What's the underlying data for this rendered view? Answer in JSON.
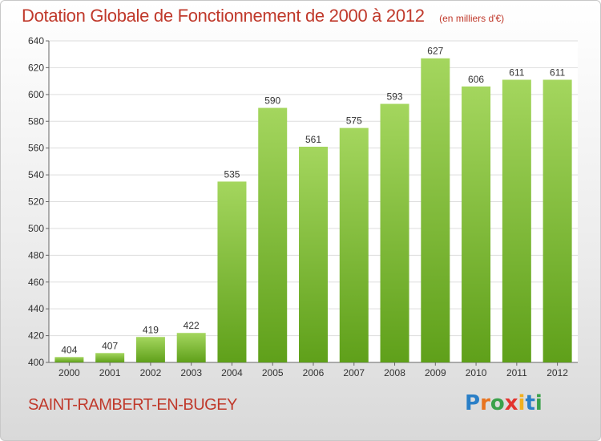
{
  "title": "Dotation Globale de Fonctionnement de 2000 à 2012",
  "subtitle": "(en milliers d'€)",
  "commune": "SAINT-RAMBERT-EN-BUGEY",
  "logo": {
    "text": "Proxiti",
    "letters": [
      {
        "char": "P",
        "color": "#2a7fc7"
      },
      {
        "char": "r",
        "color": "#e8731e"
      },
      {
        "char": "o",
        "color": "#3aa14b"
      },
      {
        "char": "x",
        "color": "#e3342f"
      },
      {
        "char": "i",
        "color": "#f2b01e"
      },
      {
        "char": "t",
        "color": "#2a7fc7"
      },
      {
        "char": "i",
        "color": "#3aa14b"
      }
    ]
  },
  "colors": {
    "title": "#c0392b",
    "bar_light": "#a4d65e",
    "bar_dark": "#5fa01a",
    "grid": "#dddddd"
  },
  "chart_data": {
    "type": "bar",
    "categories": [
      "2000",
      "2001",
      "2002",
      "2003",
      "2004",
      "2005",
      "2006",
      "2007",
      "2008",
      "2009",
      "2010",
      "2011",
      "2012"
    ],
    "values": [
      404,
      407,
      419,
      422,
      535,
      590,
      561,
      575,
      593,
      627,
      606,
      611,
      611
    ],
    "ylim": [
      400,
      640
    ],
    "yticks": [
      400,
      420,
      440,
      460,
      480,
      500,
      520,
      540,
      560,
      580,
      600,
      620,
      640
    ],
    "grid": true,
    "data_labels": true
  }
}
